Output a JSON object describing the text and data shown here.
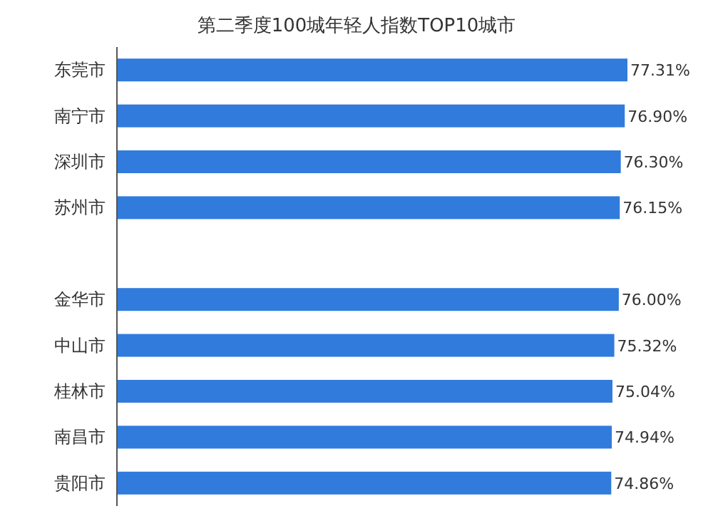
{
  "chart_data": {
    "type": "bar",
    "orientation": "horizontal",
    "title": "第二季度100城年轻人指数TOP10城市",
    "categories": [
      "东莞市",
      "南宁市",
      "深圳市",
      "苏州市",
      null,
      "金华市",
      "中山市",
      "桂林市",
      "南昌市",
      "贵阳市"
    ],
    "values": [
      77.31,
      76.9,
      76.3,
      76.15,
      null,
      76.0,
      75.32,
      75.04,
      74.94,
      74.86
    ],
    "value_labels": [
      "77.31%",
      "76.90%",
      "76.30%",
      "76.15%",
      null,
      "76.00%",
      "75.32%",
      "75.04%",
      "74.94%",
      "74.86%"
    ],
    "color": "#317bdc"
  }
}
